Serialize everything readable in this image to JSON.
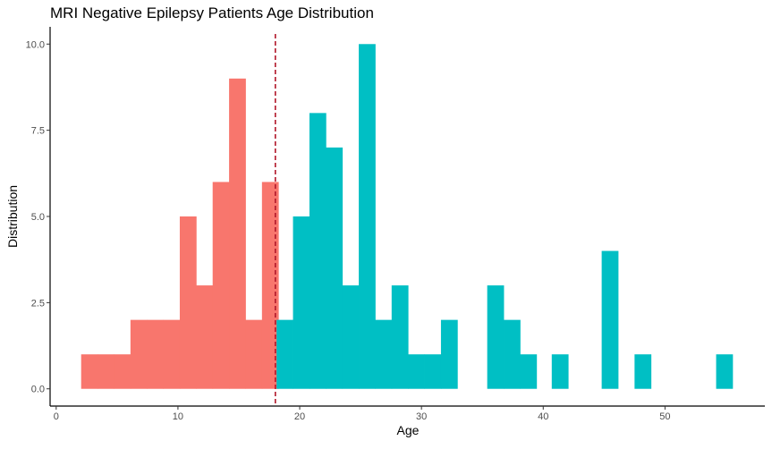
{
  "chart_data": {
    "type": "bar",
    "title": "MRI Negative Epilepsy Patients Age Distribution",
    "xlabel": "Age",
    "ylabel": "Distribution",
    "xlim": [
      -0.5,
      58.2
    ],
    "ylim": [
      -0.5,
      10.5
    ],
    "x_ticks": [
      "0",
      "10",
      "20",
      "30",
      "40",
      "50"
    ],
    "y_ticks": [
      "0.0",
      "2.5",
      "5.0",
      "7.5",
      "10.0"
    ],
    "bin_width": 1.35,
    "grid": false,
    "legend": "none",
    "threshold_line": {
      "x": 18,
      "color": "#b2182b",
      "style": "dashed"
    },
    "series": [
      {
        "color": "#f8766d",
        "bins": [
          {
            "x0": 2.05,
            "count": 1
          },
          {
            "x0": 3.4,
            "count": 1
          },
          {
            "x0": 4.75,
            "count": 1
          },
          {
            "x0": 6.1,
            "count": 2
          },
          {
            "x0": 7.45,
            "count": 2
          },
          {
            "x0": 8.8,
            "count": 2
          },
          {
            "x0": 10.15,
            "count": 5
          },
          {
            "x0": 11.5,
            "count": 3
          },
          {
            "x0": 12.85,
            "count": 6
          },
          {
            "x0": 14.2,
            "count": 9
          },
          {
            "x0": 15.55,
            "count": 2
          },
          {
            "x0": 16.9,
            "count": 6
          }
        ]
      },
      {
        "color": "#00bfc4",
        "bins": [
          {
            "x0": 18.1,
            "count": 2
          },
          {
            "x0": 19.45,
            "count": 5
          },
          {
            "x0": 20.8,
            "count": 8
          },
          {
            "x0": 22.15,
            "count": 7
          },
          {
            "x0": 23.5,
            "count": 3
          },
          {
            "x0": 24.85,
            "count": 10
          },
          {
            "x0": 26.2,
            "count": 2
          },
          {
            "x0": 27.55,
            "count": 3
          },
          {
            "x0": 28.9,
            "count": 1
          },
          {
            "x0": 30.25,
            "count": 1
          },
          {
            "x0": 31.6,
            "count": 2
          },
          {
            "x0": 32.95,
            "count": 0
          },
          {
            "x0": 35.4,
            "count": 3
          },
          {
            "x0": 36.75,
            "count": 2
          },
          {
            "x0": 38.1,
            "count": 1
          },
          {
            "x0": 40.7,
            "count": 1
          },
          {
            "x0": 44.8,
            "count": 4
          },
          {
            "x0": 47.5,
            "count": 1
          },
          {
            "x0": 54.2,
            "count": 1
          }
        ]
      }
    ]
  }
}
